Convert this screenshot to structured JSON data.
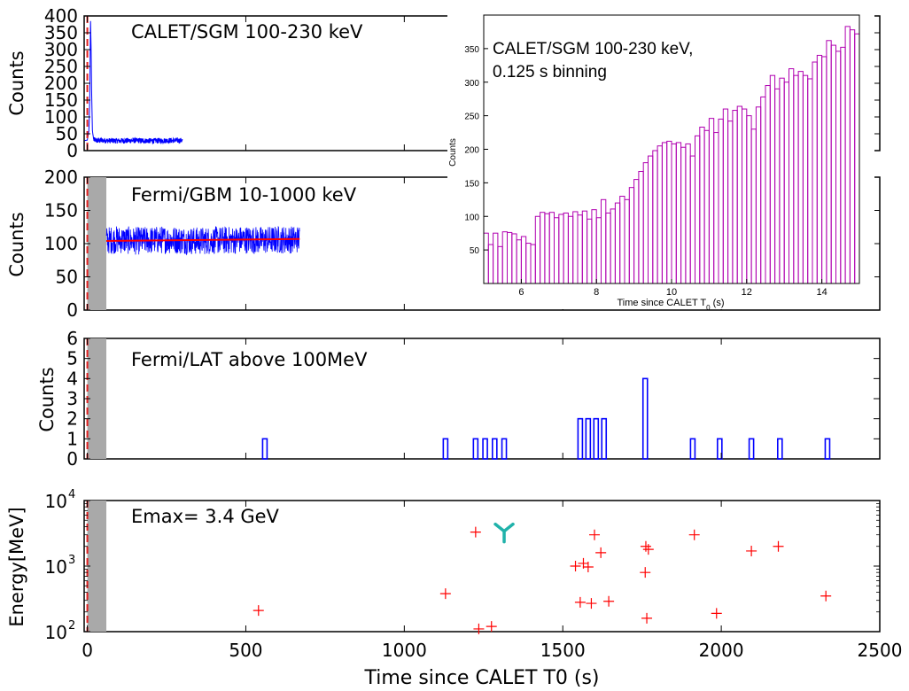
{
  "panels": {
    "sgm": {
      "label": "CALET/SGM 100-230 keV",
      "ylabel": "Counts",
      "ylim": [
        0,
        400
      ],
      "yticks": [
        "0",
        "50",
        "100",
        "150",
        "200",
        "250",
        "300",
        "350",
        "400"
      ]
    },
    "gbm": {
      "label": "Fermi/GBM 10-1000 keV",
      "ylabel": "Counts",
      "ylim": [
        0,
        200
      ],
      "yticks": [
        "0",
        "50",
        "100",
        "150",
        "200"
      ]
    },
    "lat": {
      "label": "Fermi/LAT above 100MeV",
      "ylabel": "Counts",
      "ylim": [
        0,
        6
      ],
      "yticks": [
        "0",
        "1",
        "2",
        "3",
        "4",
        "5",
        "6"
      ]
    },
    "energy": {
      "label": "Emax= 3.4 GeV",
      "ylabel": "Energy[MeV]",
      "ylim": [
        100,
        10000
      ],
      "ytick_base": "10",
      "ytick_exps": [
        "2",
        "3",
        "4"
      ]
    }
  },
  "xaxis": {
    "label": "Time since CALET T0 (s)",
    "xlim": [
      -10,
      2500
    ],
    "ticks": [
      "0",
      "500",
      "1000",
      "1500",
      "2000",
      "2500"
    ]
  },
  "inset": {
    "label_line1": "CALET/SGM 100-230 keV,",
    "label_line2": "0.125 s binning",
    "ylabel": "Counts",
    "xlabel_main": "Time since CALET T",
    "xlabel_sub": "0",
    "xlabel_unit": " (s)",
    "xticks": [
      "6",
      "8",
      "10",
      "12",
      "14"
    ],
    "yticks": [
      "50",
      "100",
      "150",
      "200",
      "250",
      "300",
      "350"
    ]
  },
  "colors": {
    "sgm_line": "#0000ff",
    "gbm_line": "#0000ff",
    "gbm_fit": "#ff0000",
    "lat_bars": "#0000ff",
    "markers": "#ff0000",
    "emax_marker": "#20b2aa",
    "inset_bars": "#b000b0",
    "t0_line": "#e02020",
    "shade": "#a9a9a9"
  },
  "chart_data": [
    {
      "type": "line",
      "title": "CALET/SGM 100-230 keV",
      "ylabel": "Counts",
      "xlim": [
        -10,
        2500
      ],
      "ylim": [
        0,
        400
      ],
      "series": [
        {
          "x": [
            -8,
            0,
            5,
            8,
            10,
            12,
            14,
            16,
            20,
            30,
            50,
            100,
            150,
            200,
            250,
            300
          ],
          "y": [
            30,
            31,
            60,
            170,
            385,
            300,
            150,
            60,
            32,
            30,
            30,
            29,
            30,
            29,
            30,
            30
          ]
        }
      ]
    },
    {
      "type": "line",
      "title": "Fermi/GBM 10-1000 keV",
      "ylabel": "Counts",
      "xlim": [
        -10,
        2500
      ],
      "ylim": [
        0,
        200
      ],
      "series": [
        {
          "x": [
            60,
            100,
            150,
            200,
            250,
            300,
            350,
            400,
            450,
            500,
            550,
            600,
            650,
            670
          ],
          "y": [
            105,
            106,
            104,
            105,
            106,
            105,
            104,
            105,
            105,
            106,
            105,
            106,
            106,
            107
          ]
        },
        {
          "x": [
            60,
            670
          ],
          "y": [
            104,
            107
          ]
        }
      ],
      "shaded_interval": [
        0,
        60
      ]
    },
    {
      "type": "bar",
      "title": "Fermi/LAT above 100MeV",
      "ylabel": "Counts",
      "xlim": [
        -10,
        2500
      ],
      "ylim": [
        0,
        6
      ],
      "x": [
        560,
        1130,
        1225,
        1255,
        1285,
        1315,
        1555,
        1580,
        1605,
        1630,
        1760,
        1910,
        1995,
        2095,
        2185,
        2335
      ],
      "values": [
        1,
        1,
        1,
        1,
        1,
        1,
        2,
        2,
        2,
        2,
        4,
        1,
        1,
        1,
        1,
        1
      ]
    },
    {
      "type": "scatter",
      "title": "Emax= 3.4 GeV",
      "ylabel": "Energy[MeV]",
      "xlabel": "Time since CALET T0 (s)",
      "xlim": [
        -10,
        2500
      ],
      "ylim": [
        100,
        10000
      ],
      "yscale": "log",
      "x": [
        540,
        1130,
        1225,
        1235,
        1275,
        1540,
        1555,
        1565,
        1580,
        1590,
        1600,
        1620,
        1645,
        1760,
        1762,
        1765,
        1770,
        1915,
        1985,
        2095,
        2180,
        2330
      ],
      "y": [
        210,
        380,
        3300,
        110,
        120,
        1000,
        280,
        1100,
        970,
        270,
        3000,
        1600,
        290,
        800,
        2000,
        160,
        1800,
        3000,
        190,
        1700,
        2000,
        350
      ],
      "emax_point": {
        "x": 1315,
        "y": 3400
      }
    },
    {
      "type": "bar",
      "title": "CALET/SGM 100-230 keV, 0.125 s binning",
      "ylabel": "Counts",
      "xlabel": "Time since CALET T0 (s)",
      "xlim": [
        5,
        15
      ],
      "ylim": [
        0,
        400
      ],
      "x_start": 5.0,
      "bin_width": 0.125,
      "values": [
        75,
        58,
        75,
        55,
        77,
        76,
        74,
        65,
        70,
        60,
        58,
        100,
        106,
        104,
        106,
        98,
        103,
        105,
        100,
        107,
        102,
        108,
        96,
        110,
        98,
        125,
        105,
        111,
        120,
        130,
        125,
        143,
        155,
        167,
        180,
        190,
        198,
        205,
        210,
        212,
        208,
        210,
        203,
        208,
        190,
        220,
        233,
        228,
        246,
        225,
        245,
        260,
        242,
        258,
        264,
        260,
        250,
        230,
        263,
        278,
        295,
        310,
        290,
        306,
        300,
        320,
        310,
        316,
        310,
        305,
        330,
        340,
        338,
        362,
        355,
        346,
        352,
        383,
        378,
        372,
        362,
        355,
        350,
        340,
        315,
        298,
        320,
        302,
        312,
        262,
        303,
        285,
        247,
        262,
        234,
        263,
        213,
        248,
        170,
        198,
        183,
        193,
        166,
        170,
        188,
        176,
        196,
        178,
        158,
        160,
        160,
        145,
        112,
        153,
        138,
        130,
        165,
        140,
        153,
        130,
        150,
        130,
        128,
        140,
        133,
        142,
        156,
        170,
        160,
        180,
        176,
        200,
        205,
        190,
        187,
        167,
        155,
        175,
        160,
        148,
        180,
        170,
        150,
        140,
        165,
        160,
        150,
        145,
        155,
        140,
        130,
        150,
        140,
        155,
        160,
        148,
        152,
        155,
        150,
        154,
        146,
        155,
        149,
        147,
        145,
        155,
        155,
        160,
        149,
        154,
        155,
        140,
        140,
        150,
        155,
        150,
        142,
        155,
        150,
        165,
        168,
        175,
        160,
        155,
        150,
        168,
        154,
        167,
        153,
        150,
        160,
        155,
        138,
        150,
        156,
        144,
        146,
        145,
        150,
        155,
        155,
        145,
        145,
        148
      ]
    }
  ]
}
